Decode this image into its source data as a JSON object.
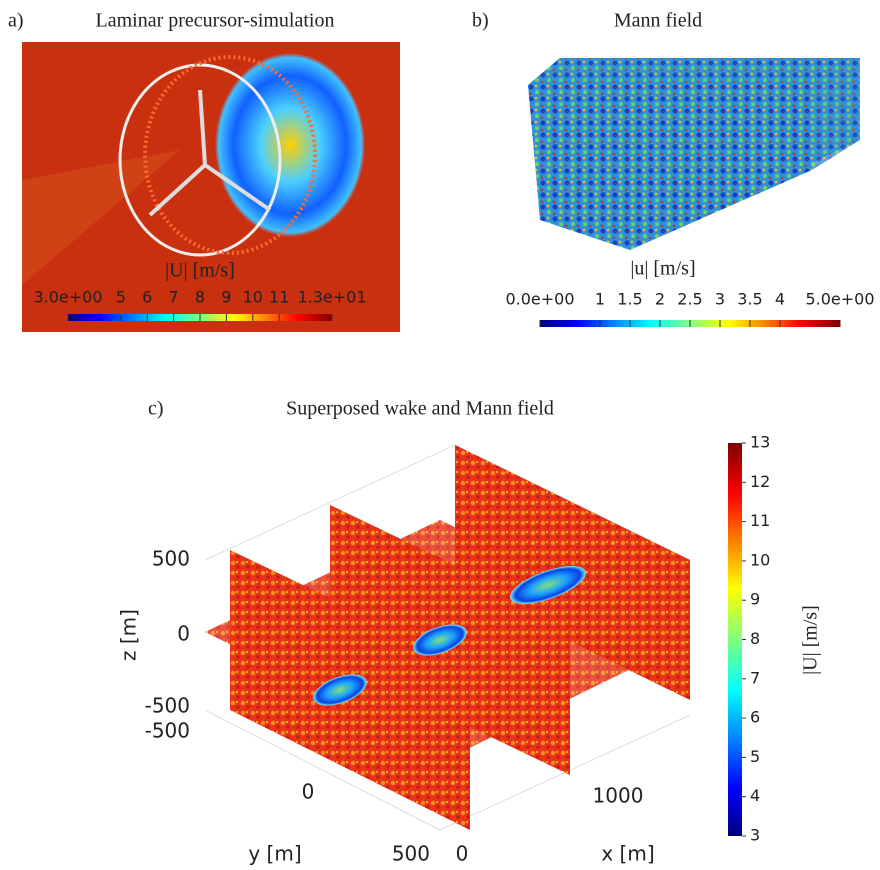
{
  "panels": [
    {
      "letter": "a)",
      "title": "Laminar precursor-simulation",
      "colorbar": {
        "label": "|U| [m/s]",
        "range": [
          3,
          13
        ],
        "ticks": [
          {
            "value": 3,
            "label": "3.0e+00"
          },
          5,
          6,
          7,
          8,
          9,
          10,
          11,
          {
            "value": 13,
            "label": "1.3e+01"
          }
        ]
      }
    },
    {
      "letter": "b)",
      "title": "Mann field",
      "colorbar": {
        "label": "|u| [m/s]",
        "range": [
          0,
          5
        ],
        "ticks": [
          {
            "value": 0,
            "label": "0.0e+00"
          },
          1,
          1.5,
          2,
          2.5,
          3,
          3.5,
          4,
          {
            "value": 5,
            "label": "5.0e+00"
          }
        ]
      }
    },
    {
      "letter": "c)",
      "title": "Superposed wake and Mann field",
      "colorbar": {
        "label": "|U| [m/s]",
        "range": [
          3,
          13
        ],
        "ticks": [
          3,
          4,
          5,
          6,
          7,
          8,
          9,
          10,
          11,
          12,
          13
        ]
      },
      "z_axis": {
        "label": "z [m]",
        "ticks": [
          500,
          0,
          -500
        ]
      },
      "y_axis": {
        "label": "y [m]",
        "ticks": [
          -500,
          0,
          500
        ]
      },
      "x_axis": {
        "label": "x [m]",
        "ticks": [
          0,
          1000
        ]
      }
    }
  ]
}
